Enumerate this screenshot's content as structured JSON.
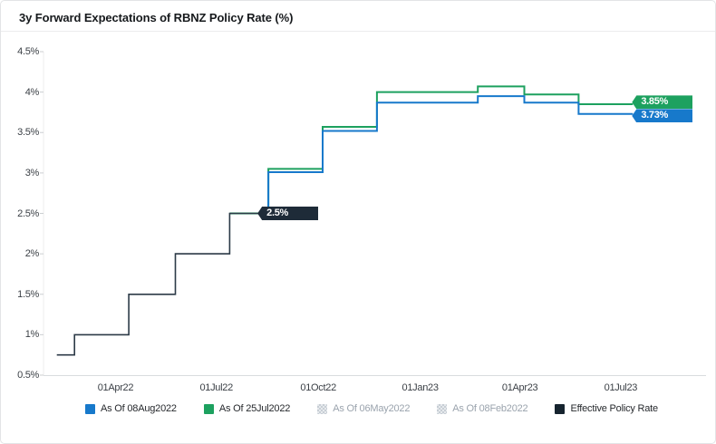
{
  "header": {
    "title": "3y Forward Expectations of RBNZ Policy Rate (%)"
  },
  "chart_data": {
    "type": "line",
    "step_interpolation": true,
    "title": "3y Forward Expectations of RBNZ Policy Rate (%)",
    "grid": false,
    "legend_position": "bottom",
    "ylim": [
      0.5,
      4.5
    ],
    "xlim": [
      "2022-01-26",
      "2023-09-16"
    ],
    "y_ticks": [
      {
        "value": 4.5,
        "label": "4.5%"
      },
      {
        "value": 4.0,
        "label": "4%"
      },
      {
        "value": 3.5,
        "label": "3.5%"
      },
      {
        "value": 3.0,
        "label": "3%"
      },
      {
        "value": 2.5,
        "label": "2.5%"
      },
      {
        "value": 2.0,
        "label": "2%"
      },
      {
        "value": 1.5,
        "label": "1.5%"
      },
      {
        "value": 1.0,
        "label": "1%"
      },
      {
        "value": 0.5,
        "label": "0.5%"
      }
    ],
    "x_ticks": [
      {
        "date": "2022-04-01",
        "label": "01Apr22"
      },
      {
        "date": "2022-07-01",
        "label": "01Jul22"
      },
      {
        "date": "2022-10-01",
        "label": "01Oct22"
      },
      {
        "date": "2023-01-01",
        "label": "01Jan23"
      },
      {
        "date": "2023-04-01",
        "label": "01Apr23"
      },
      {
        "date": "2023-07-01",
        "label": "01Jul23"
      }
    ],
    "series": [
      {
        "name": "As Of 25Jul2022",
        "color": "#1da15f",
        "width": 2,
        "steps": [
          [
            "2022-07-13",
            2.5
          ],
          [
            "2022-08-17",
            3.05
          ],
          [
            "2022-10-05",
            3.57
          ],
          [
            "2022-11-23",
            4.0
          ],
          [
            "2023-02-22",
            4.07
          ],
          [
            "2023-04-05",
            3.97
          ],
          [
            "2023-05-24",
            3.85
          ]
        ],
        "end_date": "2023-07-12",
        "end_label": "3.85%"
      },
      {
        "name": "As Of 08Aug2022",
        "color": "#1779cb",
        "width": 2,
        "steps": [
          [
            "2022-08-08",
            2.5
          ],
          [
            "2022-08-17",
            3.01
          ],
          [
            "2022-10-05",
            3.52
          ],
          [
            "2022-11-23",
            3.87
          ],
          [
            "2023-02-22",
            3.95
          ],
          [
            "2023-04-05",
            3.87
          ],
          [
            "2023-05-24",
            3.73
          ]
        ],
        "end_date": "2023-07-12",
        "end_label": "3.73%"
      },
      {
        "name": "Effective Policy Rate",
        "color": "#2c3a47",
        "width": 1.6,
        "steps": [
          [
            "2022-02-07",
            0.75
          ],
          [
            "2022-02-23",
            1.0
          ],
          [
            "2022-04-13",
            1.5
          ],
          [
            "2022-05-25",
            2.0
          ],
          [
            "2022-07-13",
            2.5
          ]
        ],
        "end_date": "2022-08-08",
        "end_label": "2.5%",
        "label_color": "#1e2b38"
      }
    ],
    "legend": [
      {
        "label": "As Of 08Aug2022",
        "color": "#1779cb",
        "active": true
      },
      {
        "label": "As Of 25Jul2022",
        "color": "#1da15f",
        "active": true
      },
      {
        "label": "As Of 06May2022",
        "color": null,
        "active": false
      },
      {
        "label": "As Of 08Feb2022",
        "color": null,
        "active": false
      },
      {
        "label": "Effective Policy Rate",
        "color": "#16242f",
        "active": true
      }
    ]
  }
}
